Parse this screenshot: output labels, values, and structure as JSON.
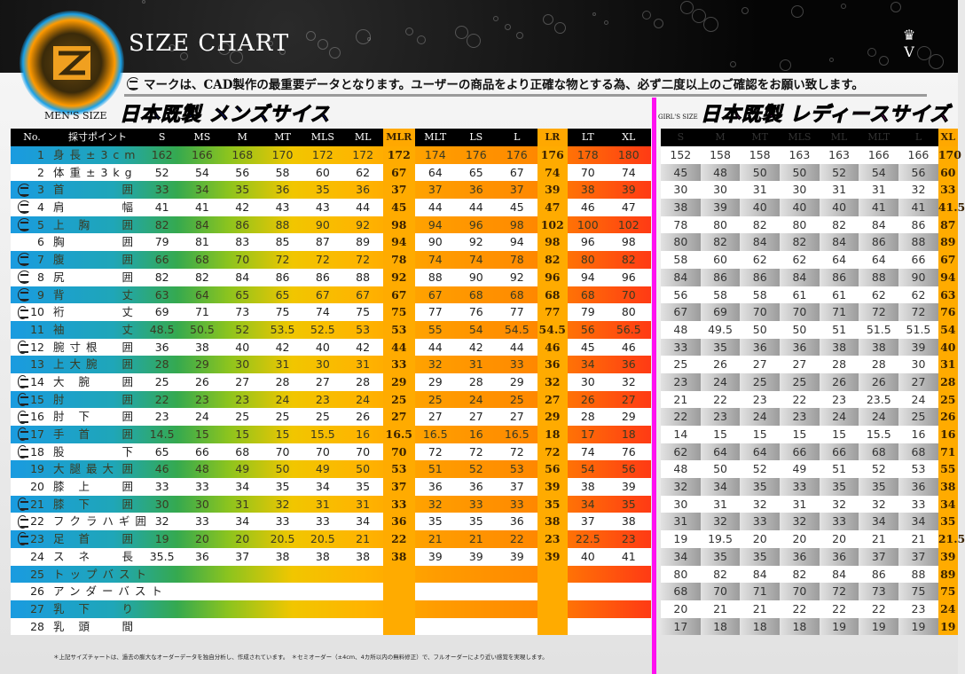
{
  "header": {
    "title": "SIZE CHART",
    "crown_mark": "V"
  },
  "notice": "マークは、CAD製作の最重要データとなります。ユーザーの商品をより正確な物とする為、必ず二度以上のご確認をお願い致します。",
  "men": {
    "label": "MEN'S SIZE",
    "heading": "日本既製 メンズサイス",
    "columns": [
      "No.",
      "採寸ポイント",
      "S",
      "MS",
      "M",
      "MT",
      "MLS",
      "ML",
      "MLR",
      "MLT",
      "LS",
      "L",
      "LR",
      "LT",
      "XL"
    ],
    "accent_columns": [
      "MLR",
      "LR"
    ],
    "rows": [
      {
        "no": "1",
        "a": "身長±3cm",
        "b": "",
        "cad": false,
        "values": [
          "162",
          "166",
          "168",
          "170",
          "172",
          "172",
          "172",
          "174",
          "176",
          "176",
          "176",
          "178",
          "180"
        ]
      },
      {
        "no": "2",
        "a": "体重±3kg",
        "b": "",
        "cad": false,
        "values": [
          "52",
          "54",
          "56",
          "58",
          "60",
          "62",
          "67",
          "64",
          "65",
          "67",
          "74",
          "70",
          "74"
        ]
      },
      {
        "no": "3",
        "a": "首",
        "b": "囲",
        "cad": true,
        "values": [
          "33",
          "34",
          "35",
          "36",
          "35",
          "36",
          "37",
          "37",
          "36",
          "37",
          "39",
          "38",
          "39"
        ]
      },
      {
        "no": "4",
        "a": "肩",
        "b": "幅",
        "cad": true,
        "values": [
          "41",
          "41",
          "42",
          "43",
          "43",
          "44",
          "45",
          "44",
          "44",
          "45",
          "47",
          "46",
          "47"
        ]
      },
      {
        "no": "5",
        "a": "上 胸",
        "b": "囲",
        "cad": true,
        "values": [
          "82",
          "84",
          "86",
          "88",
          "90",
          "92",
          "98",
          "94",
          "96",
          "98",
          "102",
          "100",
          "102"
        ]
      },
      {
        "no": "6",
        "a": "胸",
        "b": "囲",
        "cad": false,
        "values": [
          "79",
          "81",
          "83",
          "85",
          "87",
          "89",
          "94",
          "90",
          "92",
          "94",
          "98",
          "96",
          "98"
        ]
      },
      {
        "no": "7",
        "a": "腹",
        "b": "囲",
        "cad": true,
        "values": [
          "66",
          "68",
          "70",
          "72",
          "72",
          "72",
          "78",
          "74",
          "74",
          "78",
          "82",
          "80",
          "82"
        ]
      },
      {
        "no": "8",
        "a": "尻",
        "b": "囲",
        "cad": true,
        "values": [
          "82",
          "82",
          "84",
          "86",
          "86",
          "88",
          "92",
          "88",
          "90",
          "92",
          "96",
          "94",
          "96"
        ]
      },
      {
        "no": "9",
        "a": "背",
        "b": "丈",
        "cad": true,
        "values": [
          "63",
          "64",
          "65",
          "65",
          "67",
          "67",
          "67",
          "67",
          "68",
          "68",
          "68",
          "68",
          "70"
        ]
      },
      {
        "no": "10",
        "a": "裄",
        "b": "丈",
        "cad": true,
        "values": [
          "69",
          "71",
          "73",
          "75",
          "74",
          "75",
          "75",
          "77",
          "76",
          "77",
          "77",
          "79",
          "80"
        ]
      },
      {
        "no": "11",
        "a": "袖",
        "b": "丈",
        "cad": false,
        "values": [
          "48.5",
          "50.5",
          "52",
          "53.5",
          "52.5",
          "53",
          "53",
          "55",
          "54",
          "54.5",
          "54.5",
          "56",
          "56.5"
        ]
      },
      {
        "no": "12",
        "a": "腕寸根",
        "b": "囲",
        "cad": true,
        "values": [
          "36",
          "38",
          "40",
          "42",
          "40",
          "42",
          "44",
          "44",
          "42",
          "44",
          "46",
          "45",
          "46"
        ]
      },
      {
        "no": "13",
        "a": "上大腕",
        "b": "囲",
        "cad": false,
        "values": [
          "28",
          "29",
          "30",
          "31",
          "30",
          "31",
          "33",
          "32",
          "31",
          "33",
          "36",
          "34",
          "36"
        ]
      },
      {
        "no": "14",
        "a": "大 腕",
        "b": "囲",
        "cad": true,
        "values": [
          "25",
          "26",
          "27",
          "28",
          "27",
          "28",
          "29",
          "29",
          "28",
          "29",
          "32",
          "30",
          "32"
        ]
      },
      {
        "no": "15",
        "a": "肘",
        "b": "囲",
        "cad": true,
        "values": [
          "22",
          "23",
          "23",
          "24",
          "23",
          "24",
          "25",
          "25",
          "24",
          "25",
          "27",
          "26",
          "27"
        ]
      },
      {
        "no": "16",
        "a": "肘 下",
        "b": "囲",
        "cad": true,
        "values": [
          "23",
          "24",
          "25",
          "25",
          "25",
          "26",
          "27",
          "27",
          "27",
          "27",
          "29",
          "28",
          "29"
        ]
      },
      {
        "no": "17",
        "a": "手 首",
        "b": "囲",
        "cad": true,
        "values": [
          "14.5",
          "15",
          "15",
          "15",
          "15.5",
          "16",
          "16.5",
          "16.5",
          "16",
          "16.5",
          "18",
          "17",
          "18"
        ]
      },
      {
        "no": "18",
        "a": "股",
        "b": "下",
        "cad": true,
        "values": [
          "65",
          "66",
          "68",
          "70",
          "70",
          "70",
          "70",
          "72",
          "72",
          "72",
          "72",
          "74",
          "76"
        ]
      },
      {
        "no": "19",
        "a": "大腿最大",
        "b": "囲",
        "cad": false,
        "values": [
          "46",
          "48",
          "49",
          "50",
          "49",
          "50",
          "53",
          "51",
          "52",
          "53",
          "56",
          "54",
          "56"
        ]
      },
      {
        "no": "20",
        "a": "膝 上",
        "b": "囲",
        "cad": false,
        "values": [
          "33",
          "33",
          "34",
          "35",
          "34",
          "35",
          "37",
          "36",
          "36",
          "37",
          "39",
          "38",
          "39"
        ]
      },
      {
        "no": "21",
        "a": "膝 下",
        "b": "囲",
        "cad": true,
        "values": [
          "30",
          "30",
          "31",
          "32",
          "31",
          "31",
          "33",
          "32",
          "33",
          "33",
          "35",
          "34",
          "35"
        ]
      },
      {
        "no": "22",
        "a": "フクラハギ",
        "b": "囲",
        "cad": true,
        "values": [
          "32",
          "33",
          "34",
          "33",
          "33",
          "34",
          "36",
          "35",
          "35",
          "36",
          "38",
          "37",
          "38"
        ]
      },
      {
        "no": "23",
        "a": "足 首",
        "b": "囲",
        "cad": true,
        "values": [
          "19",
          "20",
          "20",
          "20.5",
          "20.5",
          "21",
          "22",
          "21",
          "21",
          "22",
          "23",
          "22.5",
          "23"
        ]
      },
      {
        "no": "24",
        "a": "ス ネ",
        "b": "長",
        "cad": false,
        "values": [
          "35.5",
          "36",
          "37",
          "38",
          "38",
          "38",
          "38",
          "39",
          "39",
          "39",
          "39",
          "40",
          "41"
        ]
      },
      {
        "no": "25",
        "a": "トップバスト",
        "b": "",
        "cad": false,
        "values": [
          "",
          "",
          "",
          "",
          "",
          "",
          "",
          "",
          "",
          "",
          "",
          "",
          ""
        ]
      },
      {
        "no": "26",
        "a": "アンダーバスト",
        "b": "",
        "cad": false,
        "values": [
          "",
          "",
          "",
          "",
          "",
          "",
          "",
          "",
          "",
          "",
          "",
          "",
          ""
        ]
      },
      {
        "no": "27",
        "a": "乳 下",
        "b": "り",
        "cad": false,
        "values": [
          "",
          "",
          "",
          "",
          "",
          "",
          "",
          "",
          "",
          "",
          "",
          "",
          ""
        ]
      },
      {
        "no": "28",
        "a": "乳 頭",
        "b": "間",
        "cad": false,
        "values": [
          "",
          "",
          "",
          "",
          "",
          "",
          "",
          "",
          "",
          "",
          "",
          "",
          ""
        ]
      }
    ]
  },
  "women": {
    "label": "GIRL'S SIZE",
    "heading": "日本既製 レディースサイズ",
    "columns": [
      "S",
      "M",
      "MT",
      "MLS",
      "ML",
      "MLT",
      "L",
      "XL"
    ],
    "accent_columns": [
      "XL"
    ],
    "rows": [
      [
        "152",
        "158",
        "158",
        "163",
        "163",
        "166",
        "166",
        "170"
      ],
      [
        "45",
        "48",
        "50",
        "50",
        "52",
        "54",
        "56",
        "60"
      ],
      [
        "30",
        "30",
        "31",
        "30",
        "31",
        "31",
        "32",
        "33"
      ],
      [
        "38",
        "39",
        "40",
        "40",
        "40",
        "41",
        "41",
        "41.5"
      ],
      [
        "78",
        "80",
        "82",
        "80",
        "82",
        "84",
        "86",
        "87"
      ],
      [
        "80",
        "82",
        "84",
        "82",
        "84",
        "86",
        "88",
        "89"
      ],
      [
        "58",
        "60",
        "62",
        "62",
        "64",
        "64",
        "66",
        "67"
      ],
      [
        "84",
        "86",
        "86",
        "84",
        "86",
        "88",
        "90",
        "94"
      ],
      [
        "56",
        "58",
        "58",
        "61",
        "61",
        "62",
        "62",
        "63"
      ],
      [
        "67",
        "69",
        "70",
        "70",
        "71",
        "72",
        "72",
        "76"
      ],
      [
        "48",
        "49.5",
        "50",
        "50",
        "51",
        "51.5",
        "51.5",
        "54"
      ],
      [
        "33",
        "35",
        "36",
        "36",
        "38",
        "38",
        "39",
        "40"
      ],
      [
        "25",
        "26",
        "27",
        "27",
        "28",
        "28",
        "30",
        "31"
      ],
      [
        "23",
        "24",
        "25",
        "25",
        "26",
        "26",
        "27",
        "28"
      ],
      [
        "21",
        "22",
        "23",
        "22",
        "23",
        "23.5",
        "24",
        "25"
      ],
      [
        "22",
        "23",
        "24",
        "23",
        "24",
        "24",
        "25",
        "26"
      ],
      [
        "14",
        "15",
        "15",
        "15",
        "15",
        "15.5",
        "16",
        "16"
      ],
      [
        "62",
        "64",
        "64",
        "66",
        "66",
        "68",
        "68",
        "71"
      ],
      [
        "48",
        "50",
        "52",
        "49",
        "51",
        "52",
        "53",
        "55"
      ],
      [
        "32",
        "34",
        "35",
        "33",
        "35",
        "35",
        "36",
        "38"
      ],
      [
        "30",
        "31",
        "32",
        "31",
        "32",
        "32",
        "33",
        "34"
      ],
      [
        "31",
        "32",
        "33",
        "32",
        "33",
        "34",
        "34",
        "35"
      ],
      [
        "19",
        "19.5",
        "20",
        "20",
        "20",
        "21",
        "21",
        "21.5"
      ],
      [
        "34",
        "35",
        "35",
        "36",
        "36",
        "37",
        "37",
        "39"
      ],
      [
        "80",
        "82",
        "84",
        "82",
        "84",
        "86",
        "88",
        "89"
      ],
      [
        "68",
        "70",
        "71",
        "70",
        "72",
        "73",
        "75",
        "75"
      ],
      [
        "20",
        "21",
        "21",
        "22",
        "22",
        "22",
        "23",
        "24"
      ],
      [
        "17",
        "18",
        "18",
        "18",
        "19",
        "19",
        "19",
        "19"
      ]
    ]
  },
  "footer": "＊上記サイズチャートは、過去の膨大なオーダーデータを独自分析し、作成されています。　＊セミオーダー（±4cm、4カ所以内の無料修正）で、フルオーダーにより近い感覚を実現します。",
  "colors": {
    "men_heading": "#1a2cff",
    "women_heading": "#ff2cf0",
    "accent_column": "#ffab00",
    "divider": "#ff10f0"
  }
}
